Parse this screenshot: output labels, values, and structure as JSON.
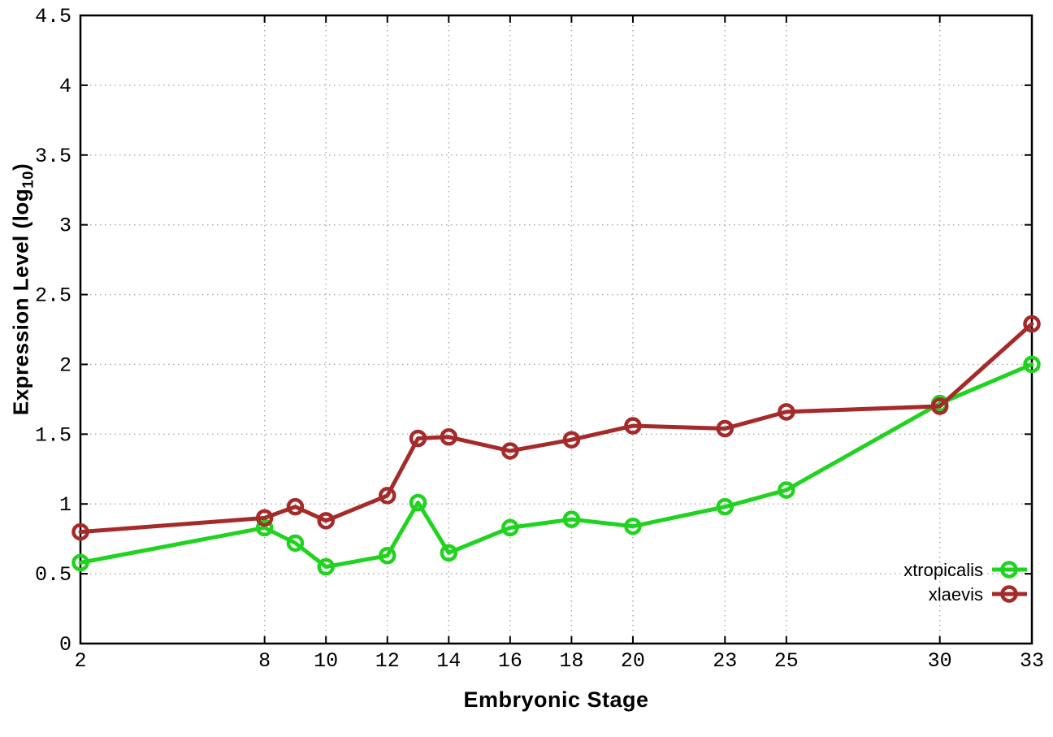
{
  "chart_data": {
    "type": "line",
    "title": "",
    "xlabel": "Embryonic Stage",
    "ylabel": "Expression Level (log10)",
    "ylabel_parts": {
      "prefix": "Expression Level (log",
      "subscript": "10",
      "suffix": ")"
    },
    "x": [
      2,
      8,
      9,
      10,
      12,
      13,
      14,
      16,
      18,
      20,
      23,
      25,
      30,
      33
    ],
    "series": [
      {
        "name": "xtropicalis",
        "color": "#1fd31f",
        "values": [
          0.58,
          0.83,
          0.72,
          0.55,
          0.63,
          1.01,
          0.65,
          0.83,
          0.89,
          0.84,
          0.98,
          1.1,
          1.72,
          2.0
        ]
      },
      {
        "name": "xlaevis",
        "color": "#a52a2a",
        "values": [
          0.8,
          0.9,
          0.98,
          0.88,
          1.06,
          1.47,
          1.48,
          1.38,
          1.46,
          1.56,
          1.54,
          1.66,
          1.7,
          2.29
        ]
      }
    ],
    "xlim": [
      2,
      33
    ],
    "ylim": [
      0,
      4.5
    ],
    "xticks": [
      2,
      8,
      10,
      12,
      14,
      16,
      18,
      20,
      23,
      25,
      30,
      33
    ],
    "yticks": [
      0,
      0.5,
      1,
      1.5,
      2,
      2.5,
      3,
      3.5,
      4,
      4.5
    ],
    "ytick_labels": [
      "0",
      "0.5",
      "1",
      "1.5",
      "2",
      "2.5",
      "3",
      "3.5",
      "4",
      "4.5"
    ],
    "grid": true,
    "legend_position": "inside-bottom-right",
    "background": "#ffffff",
    "grid_color": "#a8a8a8",
    "axis_color": "#000000",
    "marker": "open-circle"
  }
}
